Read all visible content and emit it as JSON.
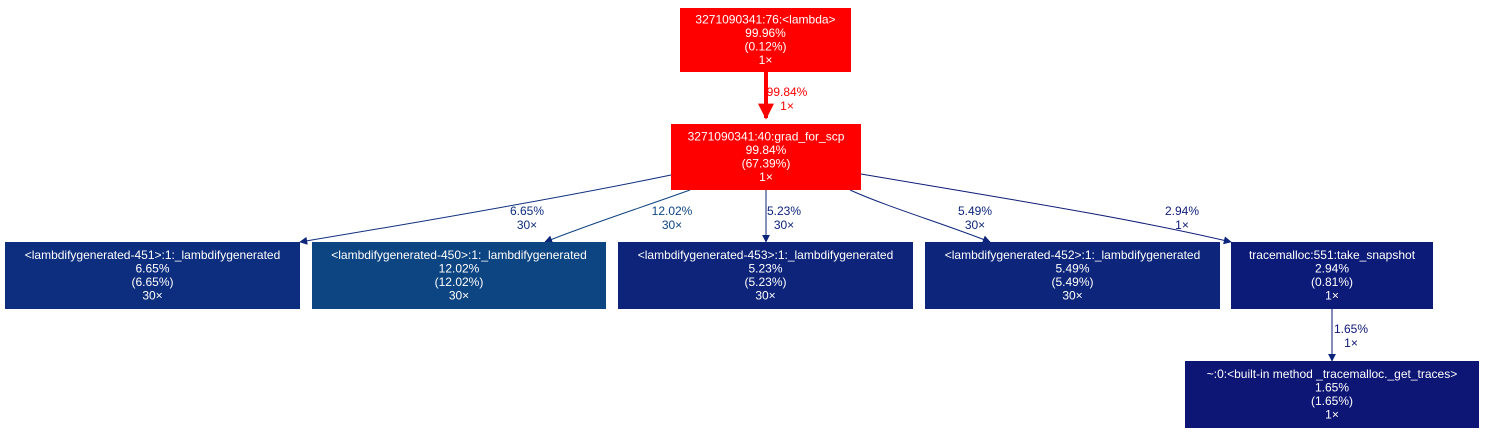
{
  "nodes": [
    {
      "id": "lambda",
      "lines": [
        "3271090341:76:<lambda>",
        "99.96%",
        "(0.12%)",
        "1×"
      ],
      "color": "#ff0000"
    },
    {
      "id": "grad",
      "lines": [
        "3271090341:40:grad_for_scp",
        "99.84%",
        "(67.39%)",
        "1×"
      ],
      "color": "#ff0000"
    },
    {
      "id": "lg451",
      "lines": [
        "<lambdifygenerated-451>:1:_lambdifygenerated",
        "6.65%",
        "(6.65%)",
        "30×"
      ],
      "color": "#0d2d7e"
    },
    {
      "id": "lg450",
      "lines": [
        "<lambdifygenerated-450>:1:_lambdifygenerated",
        "12.02%",
        "(12.02%)",
        "30×"
      ],
      "color": "#0d4482"
    },
    {
      "id": "lg453",
      "lines": [
        "<lambdifygenerated-453>:1:_lambdifygenerated",
        "5.23%",
        "(5.23%)",
        "30×"
      ],
      "color": "#0d247a"
    },
    {
      "id": "lg452",
      "lines": [
        "<lambdifygenerated-452>:1:_lambdifygenerated",
        "5.49%",
        "(5.49%)",
        "30×"
      ],
      "color": "#0d257a"
    },
    {
      "id": "snapshot",
      "lines": [
        "tracemalloc:551:take_snapshot",
        "2.94%",
        "(0.81%)",
        "1×"
      ],
      "color": "#0d1b78"
    },
    {
      "id": "traces",
      "lines": [
        "~:0:<built-in method _tracemalloc._get_traces>",
        "1.65%",
        "(1.65%)",
        "1×"
      ],
      "color": "#0d1575"
    }
  ],
  "edges": [
    {
      "from": "lambda",
      "to": "grad",
      "lines": [
        "99.84%",
        "1×"
      ],
      "color": "#ff0000"
    },
    {
      "from": "grad",
      "to": "lg451",
      "lines": [
        "6.65%",
        "30×"
      ],
      "color": "#0d2d7e"
    },
    {
      "from": "grad",
      "to": "lg450",
      "lines": [
        "12.02%",
        "30×"
      ],
      "color": "#0d4482"
    },
    {
      "from": "grad",
      "to": "lg453",
      "lines": [
        "5.23%",
        "30×"
      ],
      "color": "#0d247a"
    },
    {
      "from": "grad",
      "to": "lg452",
      "lines": [
        "5.49%",
        "30×"
      ],
      "color": "#0d257a"
    },
    {
      "from": "grad",
      "to": "snapshot",
      "lines": [
        "2.94%",
        "1×"
      ],
      "color": "#0d1b78"
    },
    {
      "from": "snapshot",
      "to": "traces",
      "lines": [
        "1.65%",
        "1×"
      ],
      "color": "#0d1575"
    }
  ]
}
